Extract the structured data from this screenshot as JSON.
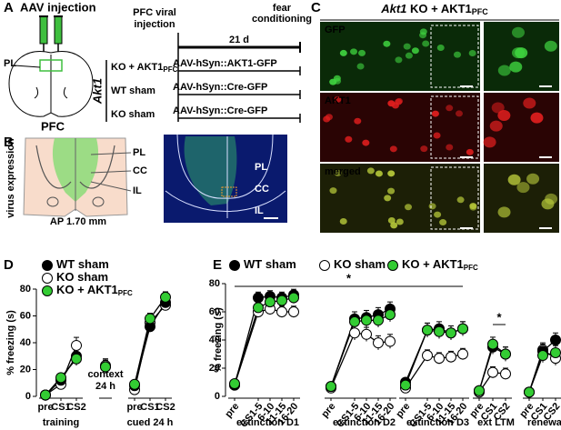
{
  "panel_a": {
    "label": "A",
    "title": "AAV injection",
    "region": "PL",
    "section": "PFC",
    "injection": [
      "PFC viral",
      "injection"
    ],
    "conditioning": [
      "fear",
      "conditioning"
    ],
    "interval": "21 d",
    "genotype": "Akt1",
    "groups": [
      {
        "name": "KO + AKT1",
        "sub": "PFC",
        "virus": "AAV-hSyn::AKT1-GFP"
      },
      {
        "name": "WT sham",
        "virus": "AAV-hSyn::Cre-GFP"
      },
      {
        "name": "KO sham",
        "virus": "AAV-hSyn::Cre-GFP"
      }
    ]
  },
  "panel_b": {
    "label": "B",
    "schematic_labels": [
      "PL",
      "CC",
      "IL"
    ],
    "side": "virus expression",
    "coordinate": "AP 1.70 mm",
    "image_labels": [
      "PL",
      "CC",
      "IL"
    ]
  },
  "panel_c": {
    "label": "C",
    "title_italic": "Akt1",
    "title_rest": " KO + AKT1",
    "title_sub": "PFC",
    "channels": [
      "GFP",
      "AKT1",
      "merged"
    ]
  },
  "chart_data": [
    {
      "type": "line",
      "label": "D",
      "ylabel": "% freezing (s)",
      "ylim": [
        0,
        80
      ],
      "yticks": [
        0,
        20,
        40,
        60,
        80
      ],
      "categories": [
        "pre",
        "CS1",
        "CS2",
        null,
        "pre",
        "CS1",
        "CS2"
      ],
      "groups": [
        "training",
        "cued 24 h"
      ],
      "context_label": [
        "context",
        "24 h"
      ],
      "series": [
        {
          "name": "WT sham",
          "color": "#000000",
          "values": [
            1,
            12,
            30,
            22,
            8,
            52,
            70
          ],
          "errors": [
            1,
            3,
            5,
            5,
            2,
            4,
            4
          ]
        },
        {
          "name": "KO sham",
          "color": "#ffffff",
          "values": [
            1,
            9,
            38,
            23,
            5,
            55,
            68
          ],
          "errors": [
            1,
            3,
            6,
            5,
            2,
            4,
            4
          ]
        },
        {
          "name": "KO + AKT1",
          "name_sub": "PFC",
          "color": "#33cc33",
          "values": [
            1,
            14,
            28,
            22,
            9,
            58,
            74
          ],
          "errors": [
            1,
            3,
            5,
            5,
            3,
            4,
            4
          ]
        }
      ]
    },
    {
      "type": "line",
      "label": "E",
      "ylabel": "% freezing (s)",
      "ylim": [
        0,
        80
      ],
      "yticks": [
        0,
        20,
        40,
        60,
        80
      ],
      "categories": [
        "pre",
        "CS1-5",
        "6-10",
        "11-15",
        "16-20",
        "pre",
        "CS1-5",
        "6-10",
        "11-15",
        "16-20",
        "pre",
        "CS1-5",
        "6-10",
        "11-15",
        "16-20",
        "pre",
        "CS1",
        "CS2",
        "pre",
        "CS1",
        "CS2"
      ],
      "groups": [
        "extinction D1",
        "extinction D2",
        "extinction D3",
        "ext LTM",
        "renewal"
      ],
      "annotations": [
        "*",
        "*"
      ],
      "series": [
        {
          "name": "WT sham",
          "color": "#000000",
          "values": [
            8,
            70,
            71,
            70,
            72,
            7,
            55,
            56,
            58,
            62,
            10,
            47,
            48,
            45,
            48,
            4,
            35,
            30,
            3,
            32,
            40
          ],
          "errors": [
            2,
            4,
            4,
            4,
            4,
            2,
            5,
            5,
            5,
            5,
            2,
            5,
            5,
            5,
            5,
            2,
            5,
            5,
            2,
            5,
            5
          ]
        },
        {
          "name": "KO sham",
          "color": "#ffffff",
          "values": [
            8,
            60,
            62,
            60,
            60,
            6,
            45,
            44,
            38,
            39,
            6,
            29,
            27,
            28,
            30,
            3,
            17,
            16,
            3,
            33,
            27
          ],
          "errors": [
            2,
            4,
            4,
            4,
            4,
            2,
            5,
            5,
            5,
            5,
            2,
            4,
            4,
            4,
            4,
            2,
            4,
            4,
            2,
            5,
            5
          ]
        },
        {
          "name": "KO + AKT1",
          "name_sub": "PFC",
          "color": "#33cc33",
          "values": [
            9,
            63,
            67,
            68,
            70,
            7,
            53,
            54,
            54,
            58,
            8,
            47,
            46,
            45,
            48,
            4,
            37,
            30,
            3,
            29,
            31
          ],
          "errors": [
            2,
            4,
            4,
            4,
            4,
            2,
            5,
            5,
            5,
            5,
            2,
            5,
            5,
            5,
            5,
            2,
            5,
            5,
            2,
            5,
            5
          ]
        }
      ]
    }
  ]
}
